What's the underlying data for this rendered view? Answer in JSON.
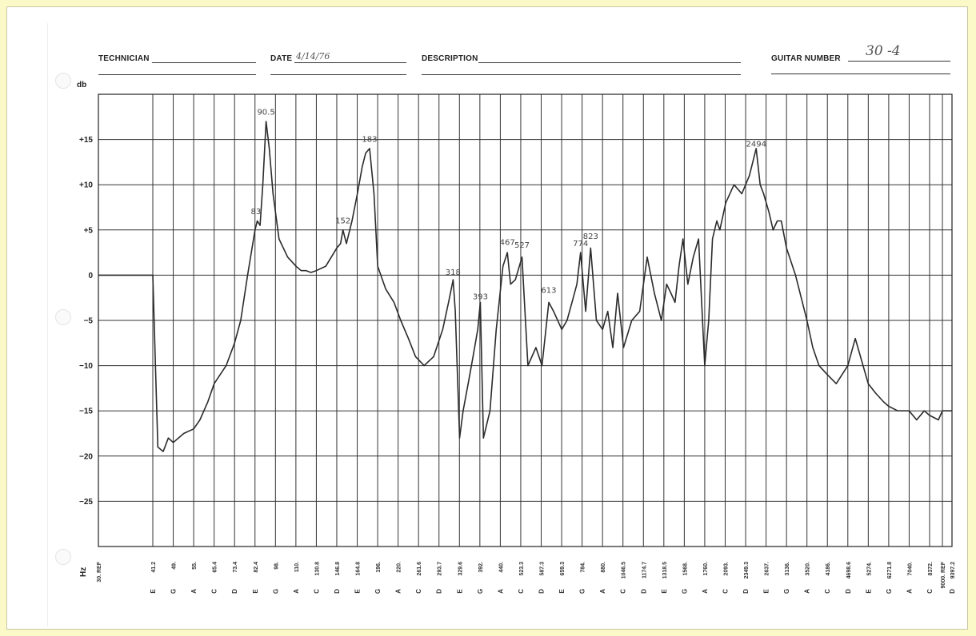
{
  "header": {
    "technician_label": "TECHNICIAN",
    "date_label": "DATE",
    "date_value": "4/14/76",
    "description_label": "DESCRIPTION",
    "guitar_number_label": "GUITAR NUMBER",
    "guitar_number_value": "30 -4"
  },
  "chart_data": {
    "type": "line",
    "ylabel": "db",
    "xlabel": "Hz",
    "ylim": [
      -30,
      20
    ],
    "y_ticks": [
      "+15",
      "+10",
      "+5",
      "0",
      "-5",
      "-10",
      "-15",
      "-20",
      "-25"
    ],
    "y_tick_values": [
      15,
      10,
      5,
      0,
      -5,
      -10,
      -15,
      -20,
      -25
    ],
    "x_scale": "log",
    "grid": true,
    "x_ticks_hz": [
      "30. REF",
      "41.2",
      "49.",
      "55.",
      "65.4",
      "73.4",
      "82.4",
      "98.",
      "110.",
      "130.8",
      "146.8",
      "164.8",
      "196.",
      "220.",
      "261.6",
      "293.7",
      "329.6",
      "392.",
      "440.",
      "523.3",
      "587.3",
      "659.3",
      "784.",
      "880.",
      "1046.5",
      "1174.7",
      "1318.5",
      "1568.",
      "1760.",
      "2093.",
      "2349.3",
      "2637.",
      "3136.",
      "3520.",
      "4186.",
      "4698.6",
      "5274.",
      "6271.8",
      "7040.",
      "8372.",
      "9000. REF",
      "9397.2"
    ],
    "x_tick_values": [
      30,
      41.2,
      49,
      55,
      65.4,
      73.4,
      82.4,
      98,
      110,
      130.8,
      146.8,
      164.8,
      196,
      220,
      261.6,
      293.7,
      329.6,
      392,
      440,
      523.3,
      587.3,
      659.3,
      784,
      880,
      1046.5,
      1174.7,
      1318.5,
      1568,
      1760,
      2093,
      2349.3,
      2637,
      3136,
      3520,
      4186,
      4698.6,
      5274,
      6271.8,
      7040,
      8372,
      9000,
      9397.2
    ],
    "x_notes": [
      "",
      "E",
      "G",
      "A",
      "C",
      "D",
      "E",
      "G",
      "A",
      "C",
      "D",
      "E",
      "G",
      "A",
      "C",
      "D",
      "E",
      "G",
      "A",
      "C",
      "D",
      "E",
      "G",
      "A",
      "C",
      "D",
      "E",
      "G",
      "A",
      "C",
      "D",
      "E",
      "G",
      "A",
      "C",
      "D",
      "E",
      "G",
      "A",
      "C",
      "",
      "D"
    ],
    "series": [
      {
        "x": [
          30,
          40,
          41.2,
          43,
          45,
          47,
          49,
          52,
          55,
          58,
          62,
          65.4,
          70,
          73.4,
          76,
          79,
          82.4,
          84,
          86,
          88,
          90.5,
          93,
          96,
          100,
          105,
          110,
          115,
          120,
          125,
          130.8,
          138,
          146.8,
          150,
          152,
          155,
          160,
          165,
          172,
          177,
          183,
          190,
          196,
          205,
          215,
          225,
          240,
          255,
          270,
          285,
          300,
          310,
          318,
          322,
          330,
          340,
          355,
          370,
          385,
          393,
          400,
          415,
          430,
          450,
          467,
          480,
          500,
          527,
          545,
          570,
          590,
          613,
          630,
          660,
          690,
          720,
          750,
          774,
          800,
          823,
          850,
          880,
          920,
          960,
          1000,
          1050,
          1100,
          1150,
          1200,
          1250,
          1300,
          1350,
          1400,
          1450,
          1500,
          1550,
          1600,
          1650,
          1700,
          1760,
          1820,
          1880,
          1950,
          2000,
          2100,
          2200,
          2300,
          2400,
          2494,
          2550,
          2600,
          2700,
          2800,
          2900,
          3000,
          3136,
          3300,
          3520,
          3700,
          3900,
          4186,
          4400,
          4698.6,
          4900,
          5274,
          5600,
          6000,
          6271.8,
          6600,
          7040,
          7500,
          8000,
          8372,
          8800,
          9000,
          9200,
          9397.2
        ],
        "y": [
          0,
          0,
          0,
          -19,
          -19.5,
          -18,
          -18.5,
          -17.5,
          -17,
          -16,
          -14,
          -12,
          -10,
          -7.5,
          -5,
          0,
          5,
          6,
          5.5,
          10,
          17,
          14,
          9,
          4,
          2,
          1,
          0.5,
          0.5,
          0.3,
          0.5,
          1,
          3,
          3.5,
          5,
          3.5,
          6,
          9,
          12,
          13.5,
          14,
          9,
          1,
          -1.5,
          -3,
          -5,
          -7,
          -9,
          -10,
          -9,
          -6,
          -3,
          -0.5,
          -4,
          -18,
          -15,
          -12,
          -9,
          -6,
          -3,
          -18,
          -15,
          -6,
          1,
          2.5,
          -1,
          -0.5,
          2,
          -10,
          -8,
          -10,
          -3,
          -4,
          -6,
          -5,
          -3,
          -1,
          2.5,
          -4,
          3,
          -5,
          -6,
          -4,
          -8,
          -2,
          -8,
          -5,
          -4,
          2,
          -2,
          -5,
          -1,
          -2,
          -3,
          1,
          4,
          -1,
          2,
          4,
          -10,
          -5,
          4,
          6,
          5,
          8,
          10,
          9,
          11,
          14,
          10,
          9,
          7,
          5,
          6,
          6,
          3,
          0,
          -5,
          -8,
          -10,
          -11,
          -12,
          -10,
          -7,
          -12,
          -13,
          -14,
          -14.5,
          -15,
          -15,
          -16,
          -15,
          -15.5,
          -16,
          -15,
          -15,
          -15
        ],
        "style": "pen"
      }
    ],
    "annotations": [
      {
        "x": 83,
        "y": 6.2,
        "text": "83"
      },
      {
        "x": 90.5,
        "y": 17.2,
        "text": "90.5"
      },
      {
        "x": 152,
        "y": 5.2,
        "text": "152"
      },
      {
        "x": 183,
        "y": 14.2,
        "text": "183"
      },
      {
        "x": 318,
        "y": -0.5,
        "text": "318"
      },
      {
        "x": 393,
        "y": -3.2,
        "text": "393"
      },
      {
        "x": 467,
        "y": 2.8,
        "text": "467"
      },
      {
        "x": 527,
        "y": 2.5,
        "text": "527"
      },
      {
        "x": 613,
        "y": -2.5,
        "text": "613"
      },
      {
        "x": 774,
        "y": 2.7,
        "text": "774"
      },
      {
        "x": 823,
        "y": 3.5,
        "text": "823"
      },
      {
        "x": 2494,
        "y": 13.7,
        "text": "2494"
      }
    ]
  }
}
